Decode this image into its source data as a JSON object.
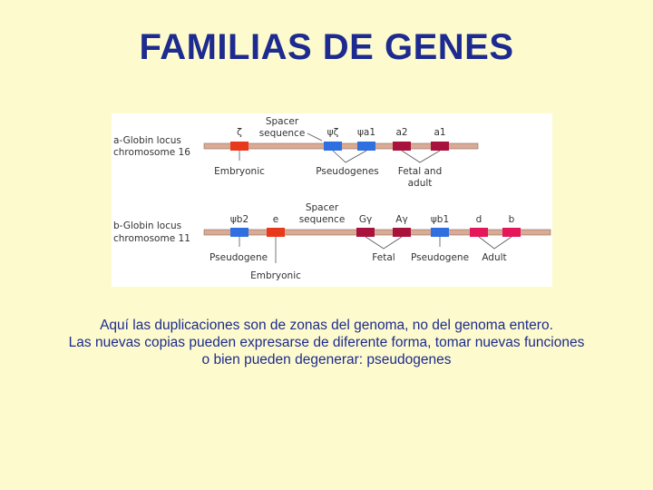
{
  "title": "FAMILIAS DE GENES",
  "diagram": {
    "alpha_locus": {
      "label_line1": "a-Globin locus",
      "label_line2": "chromosome 16",
      "spacer_line1": "Spacer",
      "spacer_line2": "sequence",
      "genes": [
        "ζ",
        "ψζ",
        "ψa1",
        "a2",
        "a1"
      ],
      "gene_colors": [
        "#e8391c",
        "#2f6fe0",
        "#2f6fe0",
        "#a8123c",
        "#a8123c"
      ],
      "groups": [
        "Embryonic",
        "Pseudogenes",
        "Fetal and",
        "adult"
      ]
    },
    "beta_locus": {
      "label_line1": "b-Globin locus",
      "label_line2": "chromosome 11",
      "spacer_line1": "Spacer",
      "spacer_line2": "sequence",
      "genes": [
        "ψb2",
        "e",
        "Gγ",
        "Aγ",
        "ψb1",
        "d",
        "b"
      ],
      "gene_colors": [
        "#2f6fe0",
        "#e8391c",
        "#a8123c",
        "#a8123c",
        "#2f6fe0",
        "#e3175a",
        "#e3175a"
      ],
      "groups": [
        "Pseudogene",
        "Embryonic",
        "Fetal",
        "Pseudogene",
        "Adult"
      ]
    },
    "chromosome_color": "#d9ab95"
  },
  "caption": {
    "line1": "Aquí las duplicaciones son de zonas del genoma, no del genoma entero.",
    "line2": "Las nuevas copias pueden expresarse de diferente forma, tomar nuevas funciones",
    "line3": "o bien pueden degenerar: pseudogenes"
  }
}
